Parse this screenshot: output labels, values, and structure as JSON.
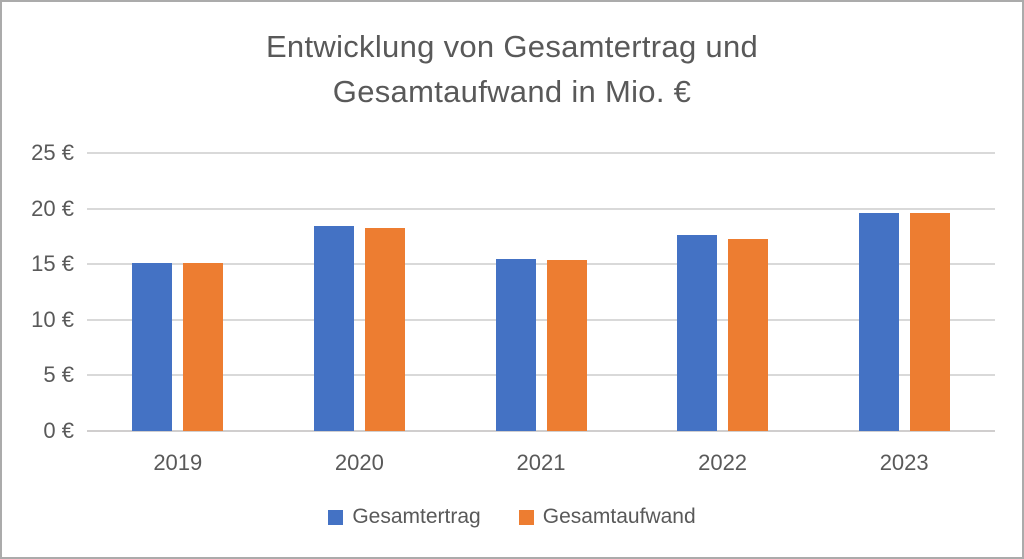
{
  "window": {
    "background": "#FFFFFF",
    "border_color": "#ABABAB"
  },
  "chart_data": {
    "type": "bar",
    "title": "Entwicklung von Gesamtertrag und Gesamtaufwand in Mio. €",
    "title_lines": [
      "Entwicklung von Gesamtertrag und",
      "Gesamtaufwand in Mio. €"
    ],
    "categories": [
      "2019",
      "2020",
      "2021",
      "2022",
      "2023"
    ],
    "series": [
      {
        "name": "Gesamtertrag",
        "color": "#4472C4",
        "values": [
          15.1,
          18.4,
          15.5,
          17.6,
          19.6
        ]
      },
      {
        "name": "Gesamtaufwand",
        "color": "#ED7D31",
        "values": [
          15.1,
          18.3,
          15.4,
          17.3,
          19.6
        ]
      }
    ],
    "xlabel": "",
    "ylabel": "",
    "ylim": [
      0,
      25
    ],
    "ytick_step": 5,
    "ytick_labels": [
      "0 €",
      "5 €",
      "10 €",
      "15 €",
      "20 €",
      "25 €"
    ],
    "grid": true,
    "legend_position": "bottom",
    "colors": {
      "text": "#595959",
      "gridline": "#D9D9D9",
      "axis_line": "#D0CECE"
    }
  }
}
